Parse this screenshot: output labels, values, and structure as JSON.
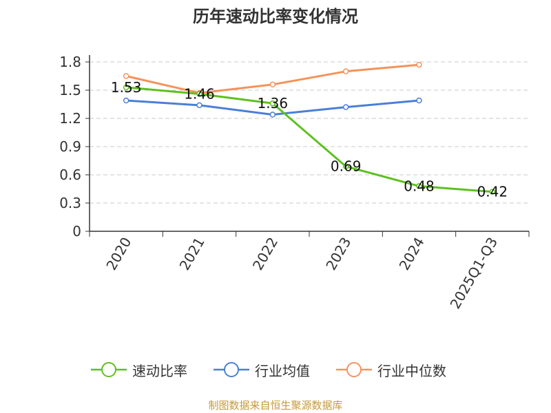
{
  "chart_data": {
    "type": "line",
    "title": "历年速动比率变化情况",
    "categories": [
      "2020",
      "2021",
      "2022",
      "2023",
      "2024",
      "2025Q1-Q3"
    ],
    "ylim": [
      0,
      1.8
    ],
    "yticks": [
      "0",
      "0.3",
      "0.6",
      "0.9",
      "1.2",
      "1.5",
      "1.8"
    ],
    "grid": true,
    "legend_position": "bottom",
    "series": [
      {
        "name": "速动比率",
        "color": "#5dc01e",
        "values": [
          1.53,
          1.46,
          1.36,
          0.69,
          0.48,
          0.42
        ],
        "labels": [
          "1.53",
          "1.46",
          "1.36",
          "0.69",
          "0.48",
          "0.42"
        ]
      },
      {
        "name": "行业均值",
        "color": "#4a7fd6",
        "values": [
          1.39,
          1.34,
          1.24,
          1.32,
          1.39,
          null
        ]
      },
      {
        "name": "行业中位数",
        "color": "#f4925a",
        "values": [
          1.65,
          1.47,
          1.56,
          1.7,
          1.77,
          null
        ]
      }
    ]
  },
  "footer": {
    "source": "制图数据来自恒生聚源数据库"
  }
}
